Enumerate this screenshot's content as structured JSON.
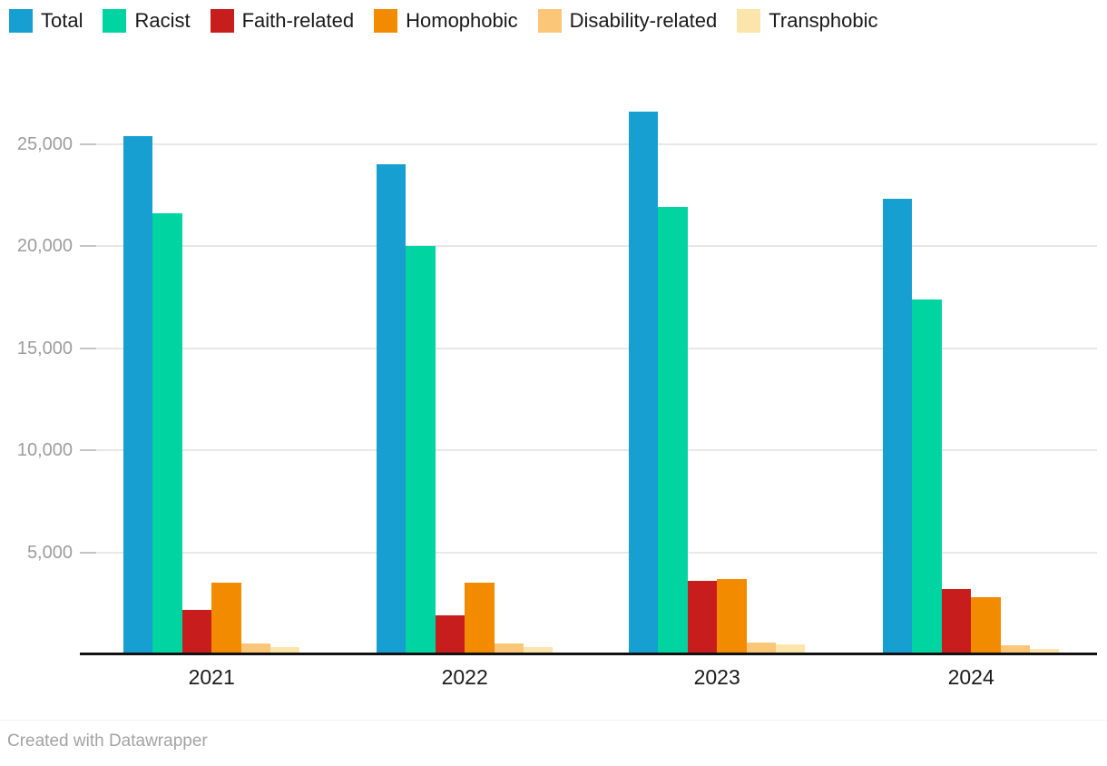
{
  "chart_data": {
    "type": "bar",
    "title": "",
    "xlabel": "",
    "ylabel": "",
    "categories": [
      "2021",
      "2022",
      "2023",
      "2024"
    ],
    "series": [
      {
        "name": "Total",
        "color": "#189fd1",
        "values": [
          25400,
          24000,
          26600,
          22300
        ]
      },
      {
        "name": "Racist",
        "color": "#00d5a2",
        "values": [
          21600,
          20000,
          21900,
          17400
        ]
      },
      {
        "name": "Faith-related",
        "color": "#c71e1d",
        "values": [
          2200,
          1900,
          3600,
          3200
        ]
      },
      {
        "name": "Homophobic",
        "color": "#f28b00",
        "values": [
          3500,
          3500,
          3700,
          2800
        ]
      },
      {
        "name": "Disability-related",
        "color": "#fcc678",
        "values": [
          550,
          550,
          600,
          450
        ]
      },
      {
        "name": "Transphobic",
        "color": "#fce5aa",
        "values": [
          350,
          350,
          500,
          270
        ]
      }
    ],
    "ylim": [
      0,
      27500
    ],
    "yticks": [
      5000,
      10000,
      15000,
      20000,
      25000
    ],
    "ytick_labels": [
      "5,000",
      "10,000",
      "15,000",
      "20,000",
      "25,000"
    ],
    "grid": true,
    "legend_position": "top-left"
  },
  "colors": {
    "background": "#ffffff",
    "gridline": "#e7e7e7",
    "tick_mark": "#c4c4c4",
    "ytick_text": "#9d9d9d",
    "xtick_text": "#1b1b1b",
    "legend_text": "#1a1a1a",
    "axis_line": "#111111",
    "footer_text": "#a3a3a3"
  },
  "footer": {
    "attribution": "Created with Datawrapper"
  }
}
